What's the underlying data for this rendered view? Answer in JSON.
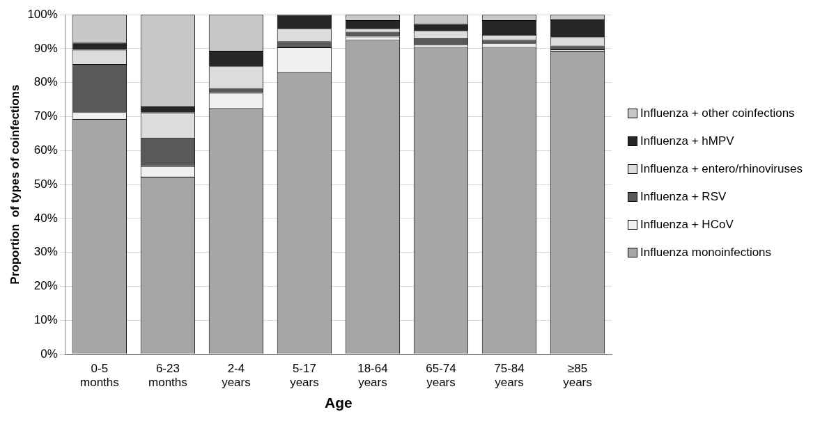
{
  "chart_data": {
    "type": "bar",
    "stacked": true,
    "xlabel": "Age",
    "ylabel": "Proportion  of types of coinfections",
    "categories": [
      "0-5 months",
      "6-23 months",
      "2-4 years",
      "5-17 years",
      "18-64 years",
      "65-74 years",
      "75-84 years",
      "≥85 years"
    ],
    "series": [
      {
        "name": "Influenza monoinfections",
        "color": "#a6a6a6",
        "values": [
          69.3,
          52.3,
          72.5,
          83.1,
          92.6,
          90.5,
          90.5,
          89.4
        ]
      },
      {
        "name": "Influenza + HCoV",
        "color": "#f0f0f0",
        "values": [
          2.0,
          3.1,
          4.5,
          7.3,
          1.0,
          0.7,
          1.1,
          0.4
        ]
      },
      {
        "name": "Influenza + RSV",
        "color": "#595959",
        "values": [
          14.2,
          8.4,
          1.4,
          1.8,
          1.4,
          1.9,
          1.0,
          1.1
        ]
      },
      {
        "name": "Influenza + entero/rhinoviruses",
        "color": "#dcdcdc",
        "values": [
          4.2,
          7.4,
          6.4,
          3.7,
          0.9,
          2.2,
          1.5,
          2.5
        ]
      },
      {
        "name": "Influenza + hMPV",
        "color": "#262626",
        "values": [
          2.1,
          1.8,
          4.6,
          4.1,
          2.5,
          2.0,
          4.3,
          5.2
        ]
      },
      {
        "name": "Influenza + other coinfections",
        "color": "#c8c8c8",
        "values": [
          8.2,
          27.0,
          10.6,
          0,
          1.6,
          2.7,
          1.6,
          1.4
        ]
      }
    ],
    "ylim": [
      0,
      100
    ],
    "yticks": [
      {
        "value": 0,
        "label": "0%"
      },
      {
        "value": 10,
        "label": "10%"
      },
      {
        "value": 20,
        "label": "20%"
      },
      {
        "value": 30,
        "label": "30%"
      },
      {
        "value": 40,
        "label": "40%"
      },
      {
        "value": 50,
        "label": "50%"
      },
      {
        "value": 60,
        "label": "60%"
      },
      {
        "value": 70,
        "label": "70%"
      },
      {
        "value": 80,
        "label": "80%"
      },
      {
        "value": 90,
        "label": "90%"
      },
      {
        "value": 100,
        "label": "100%"
      }
    ],
    "grid": "y",
    "legend": "right"
  }
}
